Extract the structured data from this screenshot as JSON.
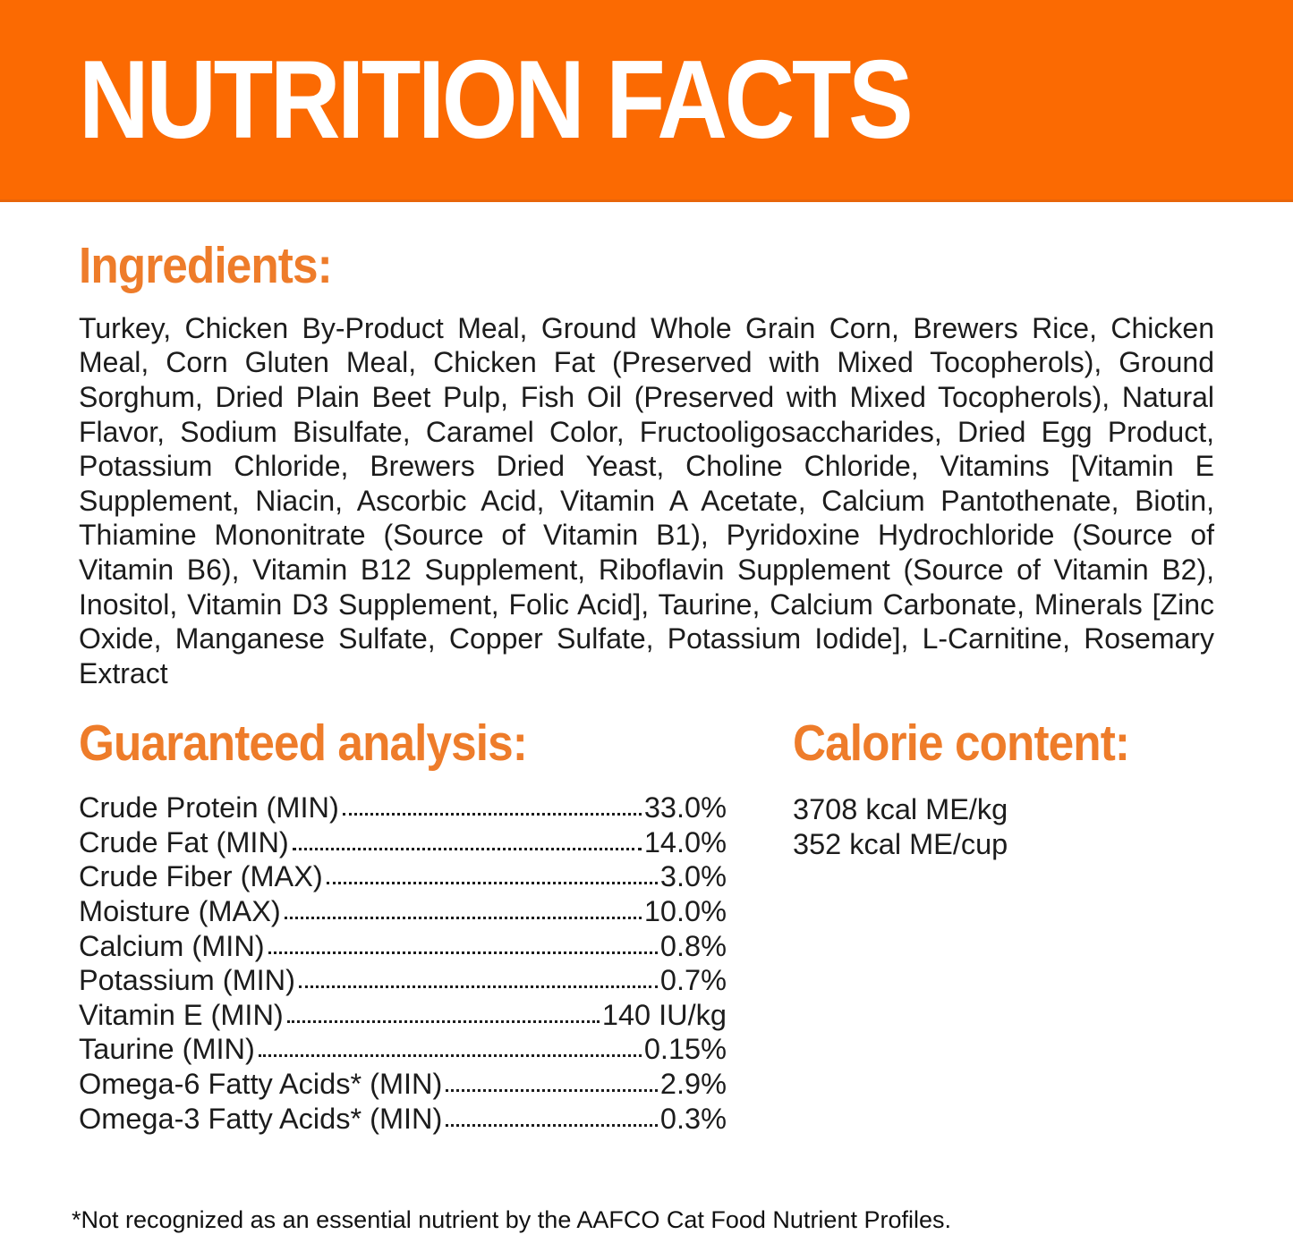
{
  "colors": {
    "banner_bg": "#fb6a02",
    "accent_heading": "#ee7c2a",
    "body_text": "#1c1c1c"
  },
  "banner": {
    "title": "NUTRITION FACTS"
  },
  "ingredients": {
    "heading": "Ingredients:",
    "text": "Turkey, Chicken By-Product Meal, Ground Whole Grain Corn, Brewers Rice, Chicken Meal, Corn Gluten Meal, Chicken Fat (Preserved with Mixed Tocopherols), Ground Sorghum, Dried Plain Beet Pulp, Fish Oil (Preserved with Mixed Tocopherols), Natural Flavor, Sodium Bisulfate, Caramel Color, Fructooligosaccharides, Dried Egg Product, Potassium Chloride, Brewers Dried Yeast, Choline Chloride, Vitamins [Vitamin E Supplement, Niacin, Ascorbic Acid, Vitamin A Acetate, Calcium Pantothenate, Biotin, Thiamine Mononitrate (Source of Vitamin B1), Pyridoxine Hydrochloride (Source of Vitamin B6), Vitamin B12 Supplement, Riboflavin Supplement (Source of Vitamin B2), Inositol, Vitamin D3 Supplement, Folic Acid], Taurine, Calcium Carbonate, Minerals [Zinc Oxide, Manganese Sulfate, Copper Sulfate, Potassium Iodide], L-Carnitine, Rosemary Extract"
  },
  "guaranteed_analysis": {
    "heading": "Guaranteed analysis:",
    "rows": [
      {
        "label": "Crude Protein (MIN)",
        "value": "33.0%"
      },
      {
        "label": "Crude Fat (MIN)",
        "value": "14.0%"
      },
      {
        "label": "Crude Fiber (MAX)",
        "value": "3.0%"
      },
      {
        "label": "Moisture (MAX)",
        "value": "10.0%"
      },
      {
        "label": "Calcium (MIN)",
        "value": "0.8%"
      },
      {
        "label": "Potassium (MIN)",
        "value": "0.7%"
      },
      {
        "label": "Vitamin E (MIN)",
        "value": "140 IU/kg"
      },
      {
        "label": "Taurine (MIN)",
        "value": "0.15%"
      },
      {
        "label": "Omega-6 Fatty Acids* (MIN)",
        "value": "2.9%"
      },
      {
        "label": "Omega-3 Fatty Acids* (MIN)",
        "value": "0.3%"
      }
    ]
  },
  "calorie_content": {
    "heading": "Calorie content:",
    "lines": [
      "3708 kcal ME/kg",
      "352 kcal ME/cup"
    ]
  },
  "footnote": "*Not recognized as an essential nutrient by the AAFCO Cat Food Nutrient Profiles."
}
